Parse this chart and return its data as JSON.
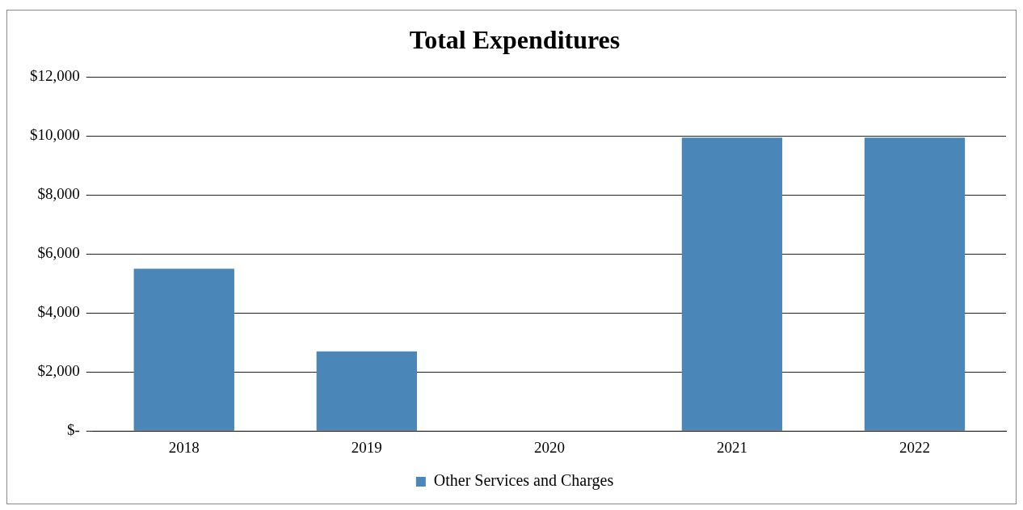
{
  "chart_data": {
    "type": "bar",
    "title": "Total Expenditures",
    "categories": [
      "2018",
      "2019",
      "2020",
      "2021",
      "2022"
    ],
    "series": [
      {
        "name": "Other Services and Charges",
        "color": "#4a86b8",
        "values": [
          5500,
          2700,
          0,
          9950,
          9950
        ]
      }
    ],
    "ylim": [
      0,
      12000
    ],
    "yticks": [
      {
        "value": 0,
        "label": "$-"
      },
      {
        "value": 2000,
        "label": "$2,000"
      },
      {
        "value": 4000,
        "label": "$4,000"
      },
      {
        "value": 6000,
        "label": "$6,000"
      },
      {
        "value": 8000,
        "label": "$8,000"
      },
      {
        "value": 10000,
        "label": "$10,000"
      },
      {
        "value": 12000,
        "label": "$12,000"
      }
    ],
    "grid": "y",
    "legend": "bottom"
  }
}
